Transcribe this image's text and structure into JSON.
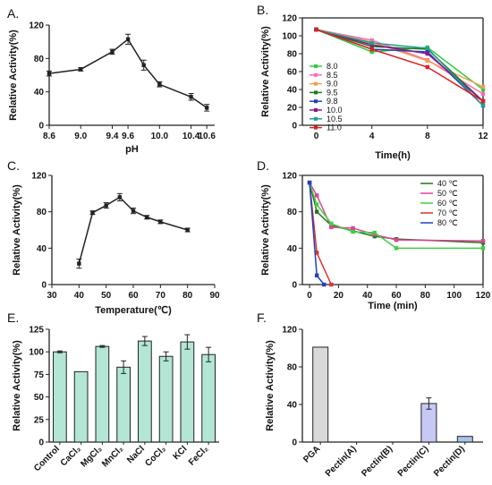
{
  "chart_data": [
    {
      "id": "A",
      "panel_label": "A.",
      "type": "line",
      "xlabel": "pH",
      "ylabel": "Relative Activity(%)",
      "xlim": [
        8.6,
        10.7
      ],
      "ylim": [
        0,
        120
      ],
      "xticks": [
        "8.6",
        "9.0",
        "9.4",
        "9.6",
        "10.0",
        "10.4",
        "10.6"
      ],
      "yticks": [
        "0",
        "40",
        "80",
        "120"
      ],
      "series": [
        {
          "x": [
            8.6,
            9.0,
            9.4,
            9.6,
            9.8,
            10.0,
            10.4,
            10.6
          ],
          "values": [
            62,
            67,
            88,
            103,
            72,
            49,
            34,
            21
          ],
          "errors": [
            3,
            2,
            3,
            6,
            6,
            3,
            4,
            4
          ],
          "color": "#222222"
        }
      ]
    },
    {
      "id": "B",
      "panel_label": "B.",
      "type": "line",
      "xlabel": "Time(h)",
      "ylabel": "Relative Activity(%)",
      "xlim": [
        -1,
        12
      ],
      "ylim": [
        0,
        120
      ],
      "xticks": [
        "0",
        "4",
        "8",
        "12"
      ],
      "yticks": [
        "0",
        "20",
        "40",
        "60",
        "80",
        "100",
        "120"
      ],
      "x": [
        0,
        4,
        8,
        12
      ],
      "series": [
        {
          "name": "8.0",
          "color": "#2ecc40",
          "values": [
            107,
            82,
            87,
            40
          ]
        },
        {
          "name": "8.5",
          "color": "#ff69b4",
          "values": [
            107,
            95,
            73,
            35
          ]
        },
        {
          "name": "9.0",
          "color": "#f0a050",
          "values": [
            107,
            93,
            72,
            43
          ]
        },
        {
          "name": "9.5",
          "color": "#1a7a1a",
          "values": [
            107,
            88,
            85,
            27
          ]
        },
        {
          "name": "9.8",
          "color": "#2040c0",
          "values": [
            107,
            85,
            82,
            22
          ]
        },
        {
          "name": "10.0",
          "color": "#8a1a8a",
          "values": [
            107,
            90,
            80,
            27
          ]
        },
        {
          "name": "10.5",
          "color": "#20a090",
          "values": [
            107,
            92,
            86,
            22
          ]
        },
        {
          "name": "11.0",
          "color": "#e02020",
          "values": [
            107,
            85,
            65,
            27
          ]
        }
      ]
    },
    {
      "id": "C",
      "panel_label": "C.",
      "type": "line",
      "xlabel": "Temperature(℃)",
      "ylabel": "Relative Activity(%)",
      "xlim": [
        30,
        90
      ],
      "ylim": [
        0,
        120
      ],
      "xticks": [
        "30",
        "40",
        "50",
        "60",
        "70",
        "80",
        "90"
      ],
      "yticks": [
        "0",
        "40",
        "80",
        "120"
      ],
      "series": [
        {
          "x": [
            40,
            45,
            50,
            55,
            60,
            65,
            70,
            80
          ],
          "values": [
            23,
            79,
            87,
            96,
            81,
            74,
            69,
            60
          ],
          "errors": [
            5,
            2,
            3,
            4,
            3,
            2,
            2,
            2
          ],
          "color": "#222222"
        }
      ]
    },
    {
      "id": "D",
      "panel_label": "D.",
      "type": "line",
      "xlabel": "Time (min)",
      "ylabel": "Relative Activity(%)",
      "xlim": [
        -5,
        120
      ],
      "ylim": [
        0,
        120
      ],
      "xticks": [
        "0",
        "20",
        "40",
        "60",
        "80",
        "100",
        "120"
      ],
      "yticks": [
        "0",
        "40",
        "80",
        "120"
      ],
      "series": [
        {
          "name": "40 ℃",
          "color": "#1a7a1a",
          "x": [
            0,
            5,
            15,
            30,
            45,
            60,
            120
          ],
          "values": [
            112,
            80,
            65,
            59,
            53,
            50,
            46
          ]
        },
        {
          "name": "50 ℃",
          "color": "#e0409a",
          "x": [
            0,
            5,
            15,
            30,
            45,
            60,
            120
          ],
          "values": [
            112,
            98,
            63,
            62,
            55,
            49,
            48
          ]
        },
        {
          "name": "60 ℃",
          "color": "#40d040",
          "x": [
            0,
            5,
            15,
            30,
            45,
            60,
            120
          ],
          "values": [
            112,
            88,
            67,
            58,
            57,
            40,
            40
          ]
        },
        {
          "name": "70 ℃",
          "color": "#e03030",
          "x": [
            0,
            5,
            15
          ],
          "values": [
            112,
            35,
            0
          ]
        },
        {
          "name": "80 ℃",
          "color": "#2040c0",
          "x": [
            0,
            5,
            10
          ],
          "values": [
            112,
            10,
            0
          ]
        }
      ]
    },
    {
      "id": "E",
      "panel_label": "E.",
      "type": "bar",
      "ylabel": "Relative Activity(%)",
      "ylim": [
        0,
        125
      ],
      "yticks": [
        "0",
        "25",
        "50",
        "75",
        "100",
        "125"
      ],
      "bar_color": "#b3e6d4",
      "categories": [
        "Control",
        "CaCl₂",
        "MgCl₂",
        "MnCl₂",
        "NaCl",
        "CoCl₂",
        "KCl",
        "FeCl₂"
      ],
      "values": [
        100,
        78,
        106,
        83,
        112,
        95,
        111,
        97
      ],
      "errors": [
        1,
        0,
        1,
        7,
        5,
        5,
        8,
        8
      ]
    },
    {
      "id": "F",
      "panel_label": "F.",
      "type": "bar",
      "ylabel": "Relative Activity(%)",
      "ylim": [
        0,
        120
      ],
      "yticks": [
        "0",
        "40",
        "80",
        "120"
      ],
      "categories": [
        "PGA",
        "Pectin(A)",
        "Pectin(B)",
        "Pectin(C)",
        "Pectin(D)"
      ],
      "values": [
        101,
        0,
        0,
        41,
        6
      ],
      "errors": [
        0,
        0,
        0,
        6,
        0
      ],
      "bar_colors": [
        "#d9d9d9",
        "#ffffff",
        "#ffffff",
        "#c8c8f5",
        "#a8c4ee"
      ]
    }
  ]
}
